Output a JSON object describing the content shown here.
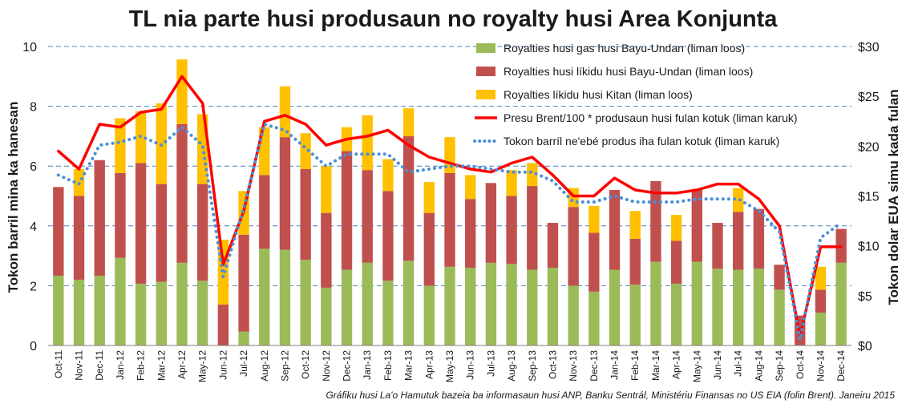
{
  "chart_data": {
    "type": "bar",
    "subtype": "stacked-bar-with-lines",
    "title": "TL nia parte husi produsaun no royalty husi Area Konjunta",
    "ylabel_left": "Tokon barril mina ka hanesan",
    "ylabel_right": "Tokon dolar EUA simu kada fulan",
    "ylim_left": [
      0,
      10
    ],
    "ylim_right": [
      0,
      30
    ],
    "left_ticks": [
      "0",
      "2",
      "4",
      "6",
      "8",
      "10"
    ],
    "right_ticks": [
      "$0",
      "$5",
      "$10",
      "$15",
      "$20",
      "$25",
      "$30"
    ],
    "grid": "horizontal-dashed",
    "legend_position": "top-right",
    "source_note": "Gráfiku husi La'o Hamutuk bazeia ba informasaun husi ANP, Banku Sentrál, Ministériu Finansas no US EIA (folin Brent).  Janeiru 2015",
    "categories": [
      "Oct-11",
      "Nov-11",
      "Dec-11",
      "Jan-12",
      "Feb-12",
      "Mar-12",
      "Apr-12",
      "May-12",
      "Jun-12",
      "Jul-12",
      "Aug-12",
      "Sep-12",
      "Oct-12",
      "Nov-12",
      "Dec-12",
      "Jan-13",
      "Feb-13",
      "Mar-13",
      "Apr-13",
      "May-13",
      "Jun-13",
      "Jul-13",
      "Aug-13",
      "Sep-13",
      "Oct-13",
      "Nov-13",
      "Dec-13",
      "Jan-14",
      "Feb-14",
      "Mar-14",
      "Apr-14",
      "May-14",
      "Jun-14",
      "Jul-14",
      "Aug-14",
      "Sep-14",
      "Oct-14",
      "Nov-14",
      "Dec-14"
    ],
    "visible_category_labels": [
      "Oct-11",
      "Nov-11",
      "Dec-11",
      "Jan-12",
      "Feb-12",
      "Mar-12",
      "Apr-12",
      "May-12",
      "Jun-12",
      "Jul-12",
      "Aug-12",
      "Sep-12",
      "Oct-12",
      "Nov-12",
      "Dec-12",
      "Jan-13",
      "Feb-13",
      "Mar-13",
      "Apr-13",
      "May-13",
      "Jun-13",
      "Jul-13",
      "Aug-13",
      "Sep-13",
      "Oct-13",
      "Nov-13",
      "Dec-13",
      "Jan-14",
      "Feb-14",
      "Mar-14",
      "Apr-14",
      "May-14",
      "Jun-14",
      "Jul-14",
      "Aug-14",
      "Sep-14",
      "Oct-14",
      "Nov-14",
      "Dec-14"
    ],
    "series": [
      {
        "name": "Royalties husi gas husi Bayu-Undan (liman loos)",
        "kind": "bar",
        "axis": "right",
        "color": "#9BBB59",
        "values": [
          7.0,
          6.6,
          7.0,
          8.8,
          6.2,
          6.4,
          8.3,
          6.5,
          0,
          1.4,
          9.7,
          9.6,
          8.6,
          5.8,
          7.6,
          8.3,
          6.5,
          8.5,
          6.0,
          7.9,
          7.8,
          8.3,
          8.2,
          7.6,
          7.8,
          6.0,
          5.4,
          7.6,
          6.1,
          8.4,
          6.2,
          8.4,
          7.7,
          7.6,
          7.7,
          5.6,
          0,
          3.3,
          8.3
        ]
      },
      {
        "name": "Royalties husi líkidu husi Bayu-Undan (liman loos)",
        "kind": "bar",
        "axis": "right",
        "color": "#C0504D",
        "values": [
          8.9,
          8.4,
          11.6,
          8.5,
          12.1,
          9.8,
          13.9,
          9.7,
          4.1,
          9.7,
          7.4,
          11.3,
          9.1,
          7.5,
          11.9,
          9.3,
          9.0,
          12.5,
          7.3,
          9.4,
          6.9,
          8.0,
          6.8,
          8.4,
          4.5,
          7.9,
          5.9,
          8.0,
          4.6,
          8.1,
          4.3,
          7.2,
          4.6,
          5.8,
          6.0,
          2.5,
          3.0,
          2.3,
          3.4
        ]
      },
      {
        "name": "Royalties líkidu husi Kitan (liman loos)",
        "kind": "bar",
        "axis": "right",
        "color": "#FFC000",
        "values": [
          0,
          2.7,
          0,
          5.5,
          5.2,
          8.1,
          6.5,
          7.0,
          6.5,
          4.4,
          4.8,
          5.1,
          3.6,
          4.7,
          2.4,
          5.5,
          3.2,
          2.8,
          3.1,
          3.6,
          2.4,
          0,
          2.6,
          2.3,
          0,
          1.9,
          2.7,
          0,
          2.8,
          0,
          2.6,
          0,
          0,
          2.4,
          0,
          0,
          0,
          2.3,
          0
        ]
      },
      {
        "name": "Presu Brent/100 * produsaun husi fulan kotuk (liman karuk)",
        "kind": "line",
        "axis": "left",
        "color": "#FF0000",
        "style": "solid",
        "values": [
          6.5,
          5.9,
          7.4,
          7.3,
          7.8,
          7.9,
          9.0,
          8.1,
          2.7,
          4.5,
          7.5,
          7.7,
          7.4,
          6.7,
          6.9,
          7.0,
          7.2,
          6.7,
          6.3,
          6.1,
          5.9,
          5.8,
          6.1,
          6.3,
          5.7,
          5.0,
          5.0,
          5.6,
          5.2,
          5.1,
          5.1,
          5.2,
          5.4,
          5.4,
          4.9,
          4.0,
          0.3,
          3.3,
          3.3
        ]
      },
      {
        "name": "Tokon barríl ne'ebé produs iha fulan kotuk (liman karuk)",
        "kind": "line",
        "axis": "left",
        "color": "#4A90D9",
        "style": "dotted",
        "values": [
          5.7,
          5.4,
          6.7,
          6.8,
          7.0,
          6.7,
          7.3,
          6.7,
          2.3,
          4.6,
          7.4,
          7.2,
          6.6,
          6.0,
          6.4,
          6.4,
          6.4,
          5.8,
          5.9,
          6.0,
          6.0,
          5.9,
          5.8,
          5.8,
          5.5,
          4.8,
          4.8,
          5.0,
          4.8,
          4.8,
          4.8,
          4.9,
          4.9,
          4.9,
          4.5,
          3.8,
          0.2,
          3.6,
          4.1
        ]
      }
    ]
  }
}
